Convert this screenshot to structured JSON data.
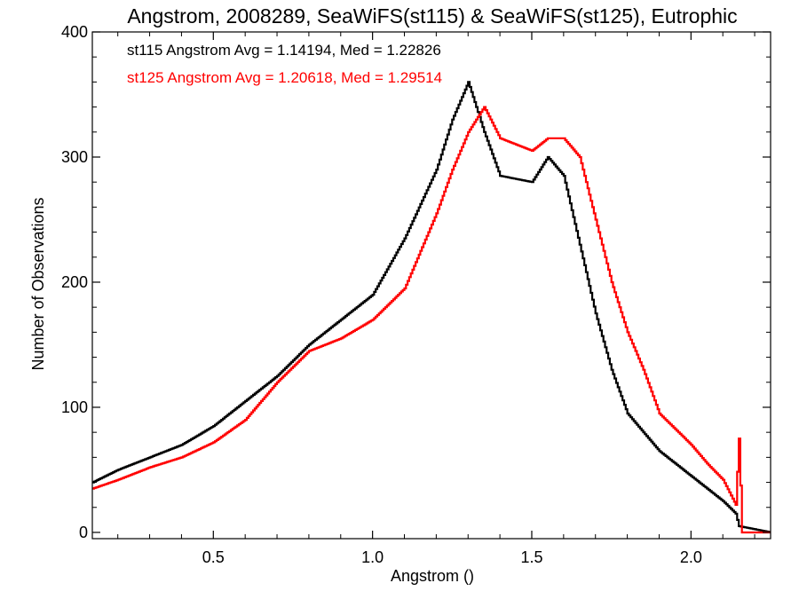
{
  "chart_data": {
    "type": "line",
    "title": "Angstrom, 2008289, SeaWiFS(st115) & SeaWiFS(st125), Eutrophic",
    "xlabel": "Angstrom ()",
    "ylabel": "Number of Observations",
    "xlim": [
      0.12,
      2.25
    ],
    "ylim": [
      -5,
      400
    ],
    "xticks": [
      0.5,
      1.0,
      1.5,
      2.0
    ],
    "xtick_labels": [
      "0.5",
      "1.0",
      "1.5",
      "2.0"
    ],
    "yticks": [
      0,
      100,
      200,
      300,
      400
    ],
    "ytick_labels": [
      "0",
      "100",
      "200",
      "300",
      "400"
    ],
    "minor_xtick_step": 0.1,
    "minor_ytick_step": 20,
    "grid": false,
    "stepped": true,
    "annotations": [
      {
        "text": "st115 Angstrom Avg = 1.14194, Med = 1.22826",
        "color": "#000000"
      },
      {
        "text": "st125 Angstrom Avg = 1.20618, Med = 1.29514",
        "color": "#ff0000"
      }
    ],
    "series": [
      {
        "color": "#000000",
        "x": [
          0.12,
          0.2,
          0.3,
          0.4,
          0.5,
          0.6,
          0.7,
          0.8,
          0.9,
          1.0,
          1.1,
          1.2,
          1.25,
          1.3,
          1.35,
          1.4,
          1.5,
          1.55,
          1.6,
          1.65,
          1.7,
          1.75,
          1.8,
          1.9,
          2.0,
          2.05,
          2.1,
          2.14,
          2.15,
          2.25
        ],
        "y": [
          40,
          50,
          60,
          70,
          85,
          105,
          125,
          150,
          170,
          190,
          235,
          290,
          330,
          360,
          320,
          285,
          280,
          300,
          285,
          230,
          175,
          130,
          95,
          65,
          45,
          35,
          25,
          15,
          5,
          0
        ]
      },
      {
        "color": "#ff0000",
        "x": [
          0.12,
          0.2,
          0.3,
          0.4,
          0.5,
          0.6,
          0.7,
          0.8,
          0.9,
          1.0,
          1.1,
          1.2,
          1.25,
          1.3,
          1.35,
          1.4,
          1.5,
          1.55,
          1.6,
          1.65,
          1.7,
          1.75,
          1.8,
          1.85,
          1.9,
          2.0,
          2.05,
          2.1,
          2.14,
          2.15,
          2.16,
          2.25
        ],
        "y": [
          35,
          42,
          52,
          60,
          72,
          90,
          120,
          145,
          155,
          170,
          195,
          255,
          290,
          320,
          340,
          315,
          305,
          315,
          315,
          300,
          250,
          200,
          160,
          130,
          95,
          70,
          55,
          42,
          22,
          75,
          0,
          0
        ]
      }
    ]
  }
}
